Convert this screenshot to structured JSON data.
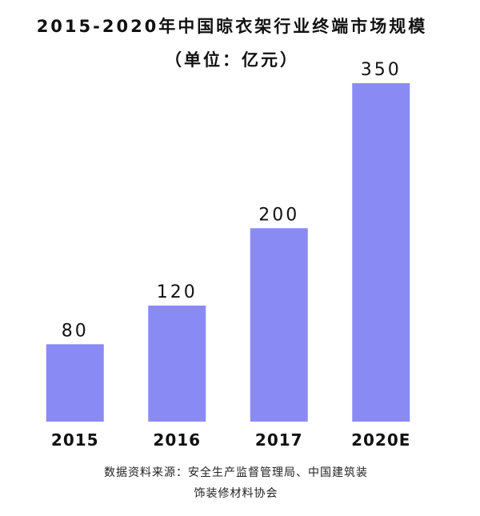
{
  "chart_data": {
    "type": "bar",
    "title": "2015-2020年中国晾衣架行业终端市场规模（单位：亿元）",
    "categories": [
      "2015",
      "2016",
      "2017",
      "2020E"
    ],
    "values": [
      80,
      120,
      200,
      350
    ],
    "color": "#8a8af5",
    "source": "数据资料来源：安全生产监督管理局、中国建筑装饰装修材料协会"
  }
}
